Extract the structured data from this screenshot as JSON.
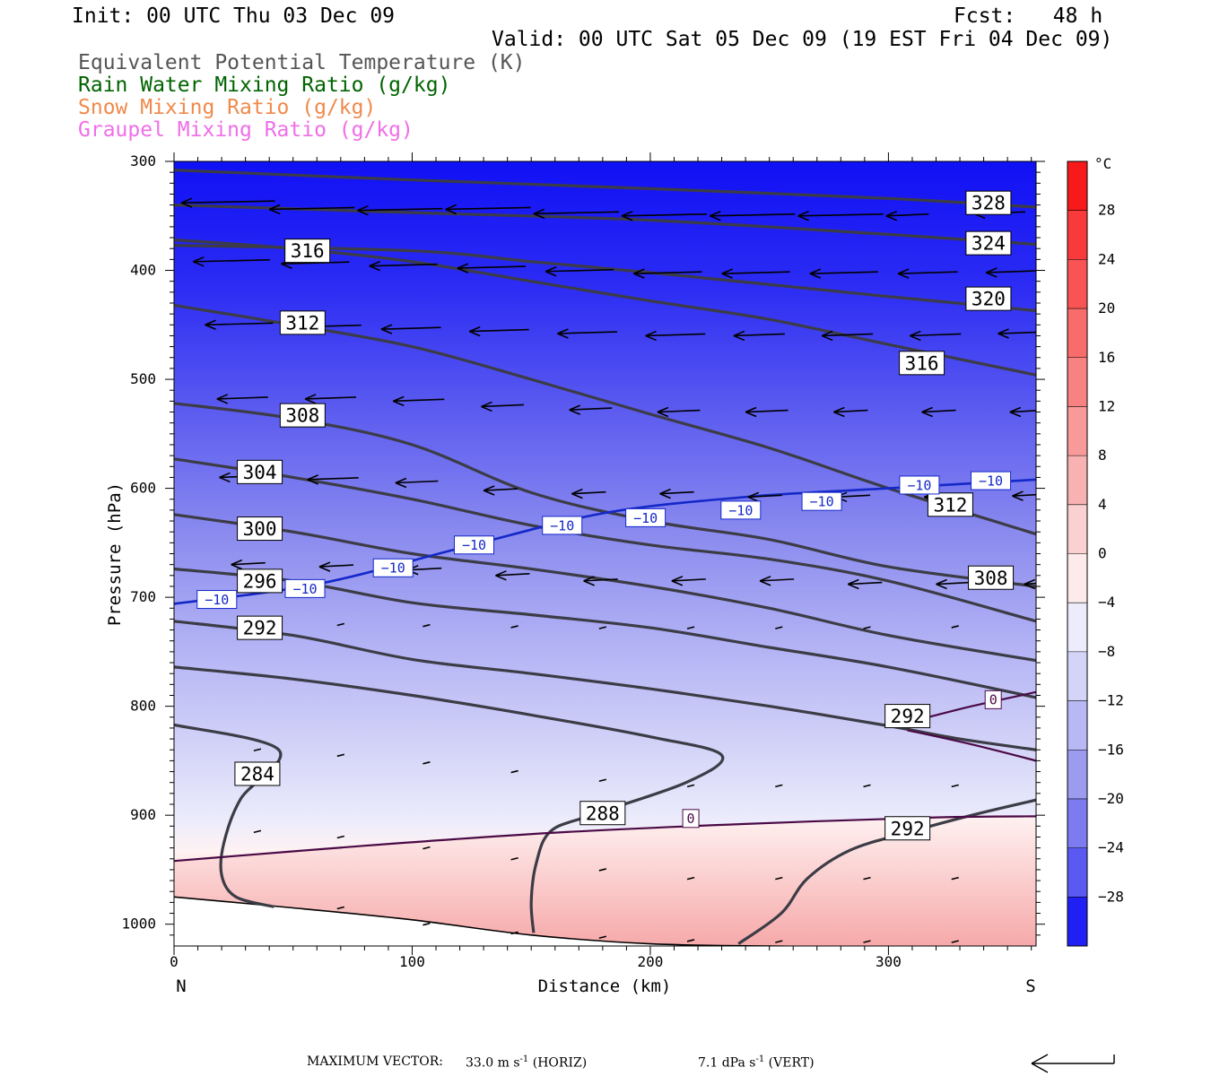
{
  "header": {
    "init": "Init: 00 UTC Thu 03 Dec 09",
    "fcst": "Fcst:   48 h",
    "valid": "Valid: 00 UTC Sat 05 Dec 09 (19 EST Fri 04 Dec 09)"
  },
  "legend": [
    {
      "label": "Equivalent Potential Temperature (K)",
      "color": "#555555"
    },
    {
      "label": "Rain Water Mixing Ratio (g/kg)",
      "color": "#006400"
    },
    {
      "label": "Snow Mixing Ratio (g/kg)",
      "color": "#ef8a4c"
    },
    {
      "label": "Graupel Mixing Ratio (g/kg)",
      "color": "#ef6ee8"
    }
  ],
  "chart_data": {
    "type": "cross-section",
    "xlabel": "Distance (km)",
    "ylabel": "Pressure (hPa)",
    "xlim": [
      0,
      362
    ],
    "ylim": [
      300,
      1020
    ],
    "x_ticks": [
      "0",
      "100",
      "200",
      "300"
    ],
    "x_tick_values": [
      0,
      100,
      200,
      300
    ],
    "y_ticks": [
      "300",
      "400",
      "500",
      "600",
      "700",
      "800",
      "900",
      "1000"
    ],
    "y_tick_values": [
      300,
      400,
      500,
      600,
      700,
      800,
      900,
      1000
    ],
    "x_end_labels": {
      "left": "N",
      "right": "S"
    },
    "colorbar": {
      "unit": "°C",
      "labels": [
        "28",
        "24",
        "20",
        "16",
        "12",
        "8",
        "4",
        "0",
        "−4",
        "−8",
        "−12",
        "−16",
        "−20",
        "−24",
        "−28"
      ],
      "values": [
        28,
        24,
        20,
        16,
        12,
        8,
        4,
        0,
        -4,
        -8,
        -12,
        -16,
        -20,
        -24,
        -28
      ]
    },
    "theta_e_contours": [
      {
        "value": 328,
        "label": "328",
        "points": [
          [
            0,
            308
          ],
          [
            100,
            317
          ],
          [
            200,
            325
          ],
          [
            300,
            334
          ],
          [
            362,
            342
          ]
        ],
        "label_at": [
          342,
          338
        ]
      },
      {
        "value": 324,
        "label": "324",
        "points": [
          [
            0,
            340
          ],
          [
            100,
            347
          ],
          [
            200,
            354
          ],
          [
            300,
            367
          ],
          [
            362,
            376
          ]
        ],
        "label_at": [
          342,
          375
        ]
      },
      {
        "value": 320,
        "label": "320",
        "points": [
          [
            0,
            377
          ],
          [
            100,
            382
          ],
          [
            150,
            392
          ],
          [
            200,
            402
          ],
          [
            300,
            424
          ],
          [
            362,
            437
          ]
        ],
        "label_at": [
          342,
          426
        ]
      },
      {
        "value": 316,
        "label": "316",
        "points": [
          [
            0,
            372
          ],
          [
            50,
            380
          ],
          [
            100,
            392
          ],
          [
            150,
            410
          ],
          [
            200,
            428
          ],
          [
            250,
            445
          ],
          [
            300,
            468
          ],
          [
            362,
            496
          ]
        ],
        "label_at": [
          56,
          382
        ],
        "label_at2": [
          314,
          485
        ]
      },
      {
        "value": 312,
        "label": "312",
        "points": [
          [
            0,
            432
          ],
          [
            50,
            450
          ],
          [
            100,
            470
          ],
          [
            150,
            500
          ],
          [
            200,
            532
          ],
          [
            250,
            563
          ],
          [
            300,
            600
          ],
          [
            362,
            642
          ]
        ],
        "label_at": [
          54,
          448
        ],
        "label_at2": [
          326,
          615
        ]
      },
      {
        "value": 308,
        "label": "308",
        "points": [
          [
            0,
            522
          ],
          [
            50,
            536
          ],
          [
            100,
            560
          ],
          [
            150,
            604
          ],
          [
            200,
            630
          ],
          [
            250,
            647
          ],
          [
            300,
            672
          ],
          [
            362,
            690
          ]
        ],
        "label_at": [
          54,
          533
        ],
        "label_at2": [
          343,
          682
        ]
      },
      {
        "value": 304,
        "label": "304",
        "points": [
          [
            0,
            573
          ],
          [
            50,
            590
          ],
          [
            100,
            610
          ],
          [
            150,
            634
          ],
          [
            200,
            652
          ],
          [
            250,
            665
          ],
          [
            300,
            685
          ],
          [
            362,
            722
          ]
        ],
        "label_at": [
          36,
          585
        ]
      },
      {
        "value": 300,
        "label": "300",
        "points": [
          [
            0,
            624
          ],
          [
            50,
            640
          ],
          [
            100,
            660
          ],
          [
            150,
            674
          ],
          [
            200,
            690
          ],
          [
            250,
            710
          ],
          [
            300,
            735
          ],
          [
            362,
            758
          ]
        ],
        "label_at": [
          36,
          637
        ]
      },
      {
        "value": 296,
        "label": "296",
        "points": [
          [
            0,
            674
          ],
          [
            50,
            685
          ],
          [
            100,
            705
          ],
          [
            150,
            716
          ],
          [
            200,
            728
          ],
          [
            250,
            746
          ],
          [
            300,
            764
          ],
          [
            362,
            792
          ]
        ],
        "label_at": [
          36,
          685
        ]
      },
      {
        "value": 292,
        "label": "292",
        "points": [
          [
            0,
            722
          ],
          [
            50,
            735
          ],
          [
            100,
            757
          ],
          [
            150,
            770
          ],
          [
            200,
            784
          ],
          [
            250,
            800
          ],
          [
            300,
            818
          ],
          [
            330,
            830
          ],
          [
            362,
            840
          ]
        ],
        "label_at": [
          36,
          728
        ],
        "label_at2": [
          308,
          809
        ]
      },
      {
        "value": 288,
        "label": "288",
        "points": [
          [
            0,
            764
          ],
          [
            50,
            775
          ],
          [
            100,
            790
          ],
          [
            150,
            808
          ],
          [
            200,
            828
          ],
          [
            230,
            845
          ],
          [
            215,
            870
          ],
          [
            175,
            900
          ],
          [
            158,
            915
          ],
          [
            152,
            945
          ],
          [
            150,
            980
          ],
          [
            151,
            1008
          ]
        ],
        "label_at": [
          180,
          898
        ]
      },
      {
        "value": 284,
        "label": "284",
        "points": [
          [
            0,
            817
          ],
          [
            44,
            840
          ],
          [
            28,
            885
          ],
          [
            21,
            925
          ],
          [
            20,
            955
          ],
          [
            26,
            975
          ],
          [
            42,
            984
          ]
        ],
        "label_at": [
          35,
          862
        ]
      },
      {
        "value": 292,
        "label": "292",
        "points": [
          [
            237,
            1018
          ],
          [
            255,
            990
          ],
          [
            266,
            958
          ],
          [
            284,
            932
          ],
          [
            308,
            916
          ],
          [
            335,
            900
          ],
          [
            362,
            886
          ]
        ],
        "label_at": [
          308,
          912
        ]
      }
    ],
    "temp_zero_contours": [
      {
        "label": "0",
        "points": [
          [
            0,
            942
          ],
          [
            80,
            928
          ],
          [
            160,
            916
          ],
          [
            240,
            908
          ],
          [
            320,
            902
          ],
          [
            362,
            901
          ]
        ],
        "label_at": [
          217,
          903
        ]
      },
      {
        "label": "0",
        "points": [
          [
            308,
            815
          ],
          [
            335,
            800
          ],
          [
            362,
            787
          ]
        ],
        "label_at": [
          344,
          794
        ]
      },
      {
        "label": "",
        "points": [
          [
            308,
            822
          ],
          [
            335,
            835
          ],
          [
            362,
            850
          ]
        ]
      }
    ],
    "temp_minus10_contour": {
      "label": "−10",
      "points": [
        [
          0,
          706
        ],
        [
          60,
          688
        ],
        [
          120,
          655
        ],
        [
          180,
          623
        ],
        [
          240,
          608
        ],
        [
          300,
          600
        ],
        [
          362,
          592
        ]
      ],
      "label_positions": [
        [
          18,
          702
        ],
        [
          55,
          692
        ],
        [
          92,
          673
        ],
        [
          126,
          652
        ],
        [
          163,
          634
        ],
        [
          198,
          627
        ],
        [
          238,
          620
        ],
        [
          272,
          612
        ],
        [
          313,
          597
        ],
        [
          343,
          593
        ]
      ]
    },
    "ground_pressure": [
      [
        0,
        975
      ],
      [
        50,
        985
      ],
      [
        100,
        996
      ],
      [
        150,
        1010
      ],
      [
        200,
        1018
      ],
      [
        250,
        1020
      ],
      [
        300,
        1021
      ],
      [
        362,
        1022
      ]
    ],
    "wind_vectors": [
      {
        "x": 0,
        "p": 338,
        "u": -1.1
      },
      {
        "x": 37,
        "p": 344,
        "u": -1.0
      },
      {
        "x": 74,
        "p": 345,
        "u": -1.0
      },
      {
        "x": 111,
        "p": 344,
        "u": -1.0
      },
      {
        "x": 148,
        "p": 348,
        "u": -1.0
      },
      {
        "x": 185,
        "p": 350,
        "u": -1.0
      },
      {
        "x": 222,
        "p": 350,
        "u": -1.0
      },
      {
        "x": 259,
        "p": 350,
        "u": -1.0
      },
      {
        "x": 296,
        "p": 350,
        "u": -0.5
      },
      {
        "x": 333,
        "p": 348,
        "u": -0.6
      },
      {
        "x": 5,
        "p": 392,
        "u": -0.9
      },
      {
        "x": 42,
        "p": 394,
        "u": -0.8
      },
      {
        "x": 79,
        "p": 396,
        "u": -0.8
      },
      {
        "x": 116,
        "p": 398,
        "u": -0.8
      },
      {
        "x": 153,
        "p": 401,
        "u": -0.8
      },
      {
        "x": 190,
        "p": 403,
        "u": -0.8
      },
      {
        "x": 227,
        "p": 403,
        "u": -0.8
      },
      {
        "x": 264,
        "p": 403,
        "u": -0.8
      },
      {
        "x": 301,
        "p": 403,
        "u": -0.7
      },
      {
        "x": 338,
        "p": 402,
        "u": -0.6
      },
      {
        "x": 10,
        "p": 450,
        "u": -0.8
      },
      {
        "x": 47,
        "p": 452,
        "u": -0.8
      },
      {
        "x": 84,
        "p": 454,
        "u": -0.7
      },
      {
        "x": 121,
        "p": 456,
        "u": -0.7
      },
      {
        "x": 158,
        "p": 458,
        "u": -0.7
      },
      {
        "x": 195,
        "p": 460,
        "u": -0.7
      },
      {
        "x": 232,
        "p": 460,
        "u": -0.6
      },
      {
        "x": 269,
        "p": 460,
        "u": -0.6
      },
      {
        "x": 306,
        "p": 460,
        "u": -0.6
      },
      {
        "x": 343,
        "p": 458,
        "u": -0.6
      },
      {
        "x": 15,
        "p": 518,
        "u": -0.6
      },
      {
        "x": 52,
        "p": 518,
        "u": -0.6
      },
      {
        "x": 89,
        "p": 520,
        "u": -0.6
      },
      {
        "x": 126,
        "p": 525,
        "u": -0.5
      },
      {
        "x": 163,
        "p": 528,
        "u": -0.5
      },
      {
        "x": 200,
        "p": 530,
        "u": -0.5
      },
      {
        "x": 237,
        "p": 530,
        "u": -0.5
      },
      {
        "x": 274,
        "p": 530,
        "u": -0.4
      },
      {
        "x": 311,
        "p": 530,
        "u": -0.4
      },
      {
        "x": 348,
        "p": 530,
        "u": -0.4
      },
      {
        "x": 16,
        "p": 590,
        "u": -0.6
      },
      {
        "x": 53,
        "p": 592,
        "u": -0.6
      },
      {
        "x": 90,
        "p": 595,
        "u": -0.5
      },
      {
        "x": 127,
        "p": 602,
        "u": -0.4
      },
      {
        "x": 164,
        "p": 605,
        "u": -0.4
      },
      {
        "x": 201,
        "p": 605,
        "u": -0.4
      },
      {
        "x": 238,
        "p": 608,
        "u": -0.4
      },
      {
        "x": 275,
        "p": 608,
        "u": -0.4
      },
      {
        "x": 312,
        "p": 608,
        "u": -0.4
      },
      {
        "x": 349,
        "p": 607,
        "u": -0.4
      },
      {
        "x": 21,
        "p": 670,
        "u": -0.4
      },
      {
        "x": 58,
        "p": 672,
        "u": -0.4
      },
      {
        "x": 95,
        "p": 675,
        "u": -0.4
      },
      {
        "x": 132,
        "p": 680,
        "u": -0.4
      },
      {
        "x": 169,
        "p": 685,
        "u": -0.4
      },
      {
        "x": 206,
        "p": 685,
        "u": -0.4
      },
      {
        "x": 243,
        "p": 685,
        "u": -0.4
      },
      {
        "x": 280,
        "p": 688,
        "u": -0.4
      },
      {
        "x": 317,
        "p": 688,
        "u": -0.4
      },
      {
        "x": 354,
        "p": 688,
        "u": -0.3
      }
    ]
  },
  "footer": {
    "max_vector_label": "MAXIMUM VECTOR:",
    "horiz_value": "33.0 m s",
    "horiz_unit": "(HORIZ)",
    "vert_value": "7.1 dPa s",
    "vert_unit": "(VERT)",
    "exponent": "-1"
  }
}
